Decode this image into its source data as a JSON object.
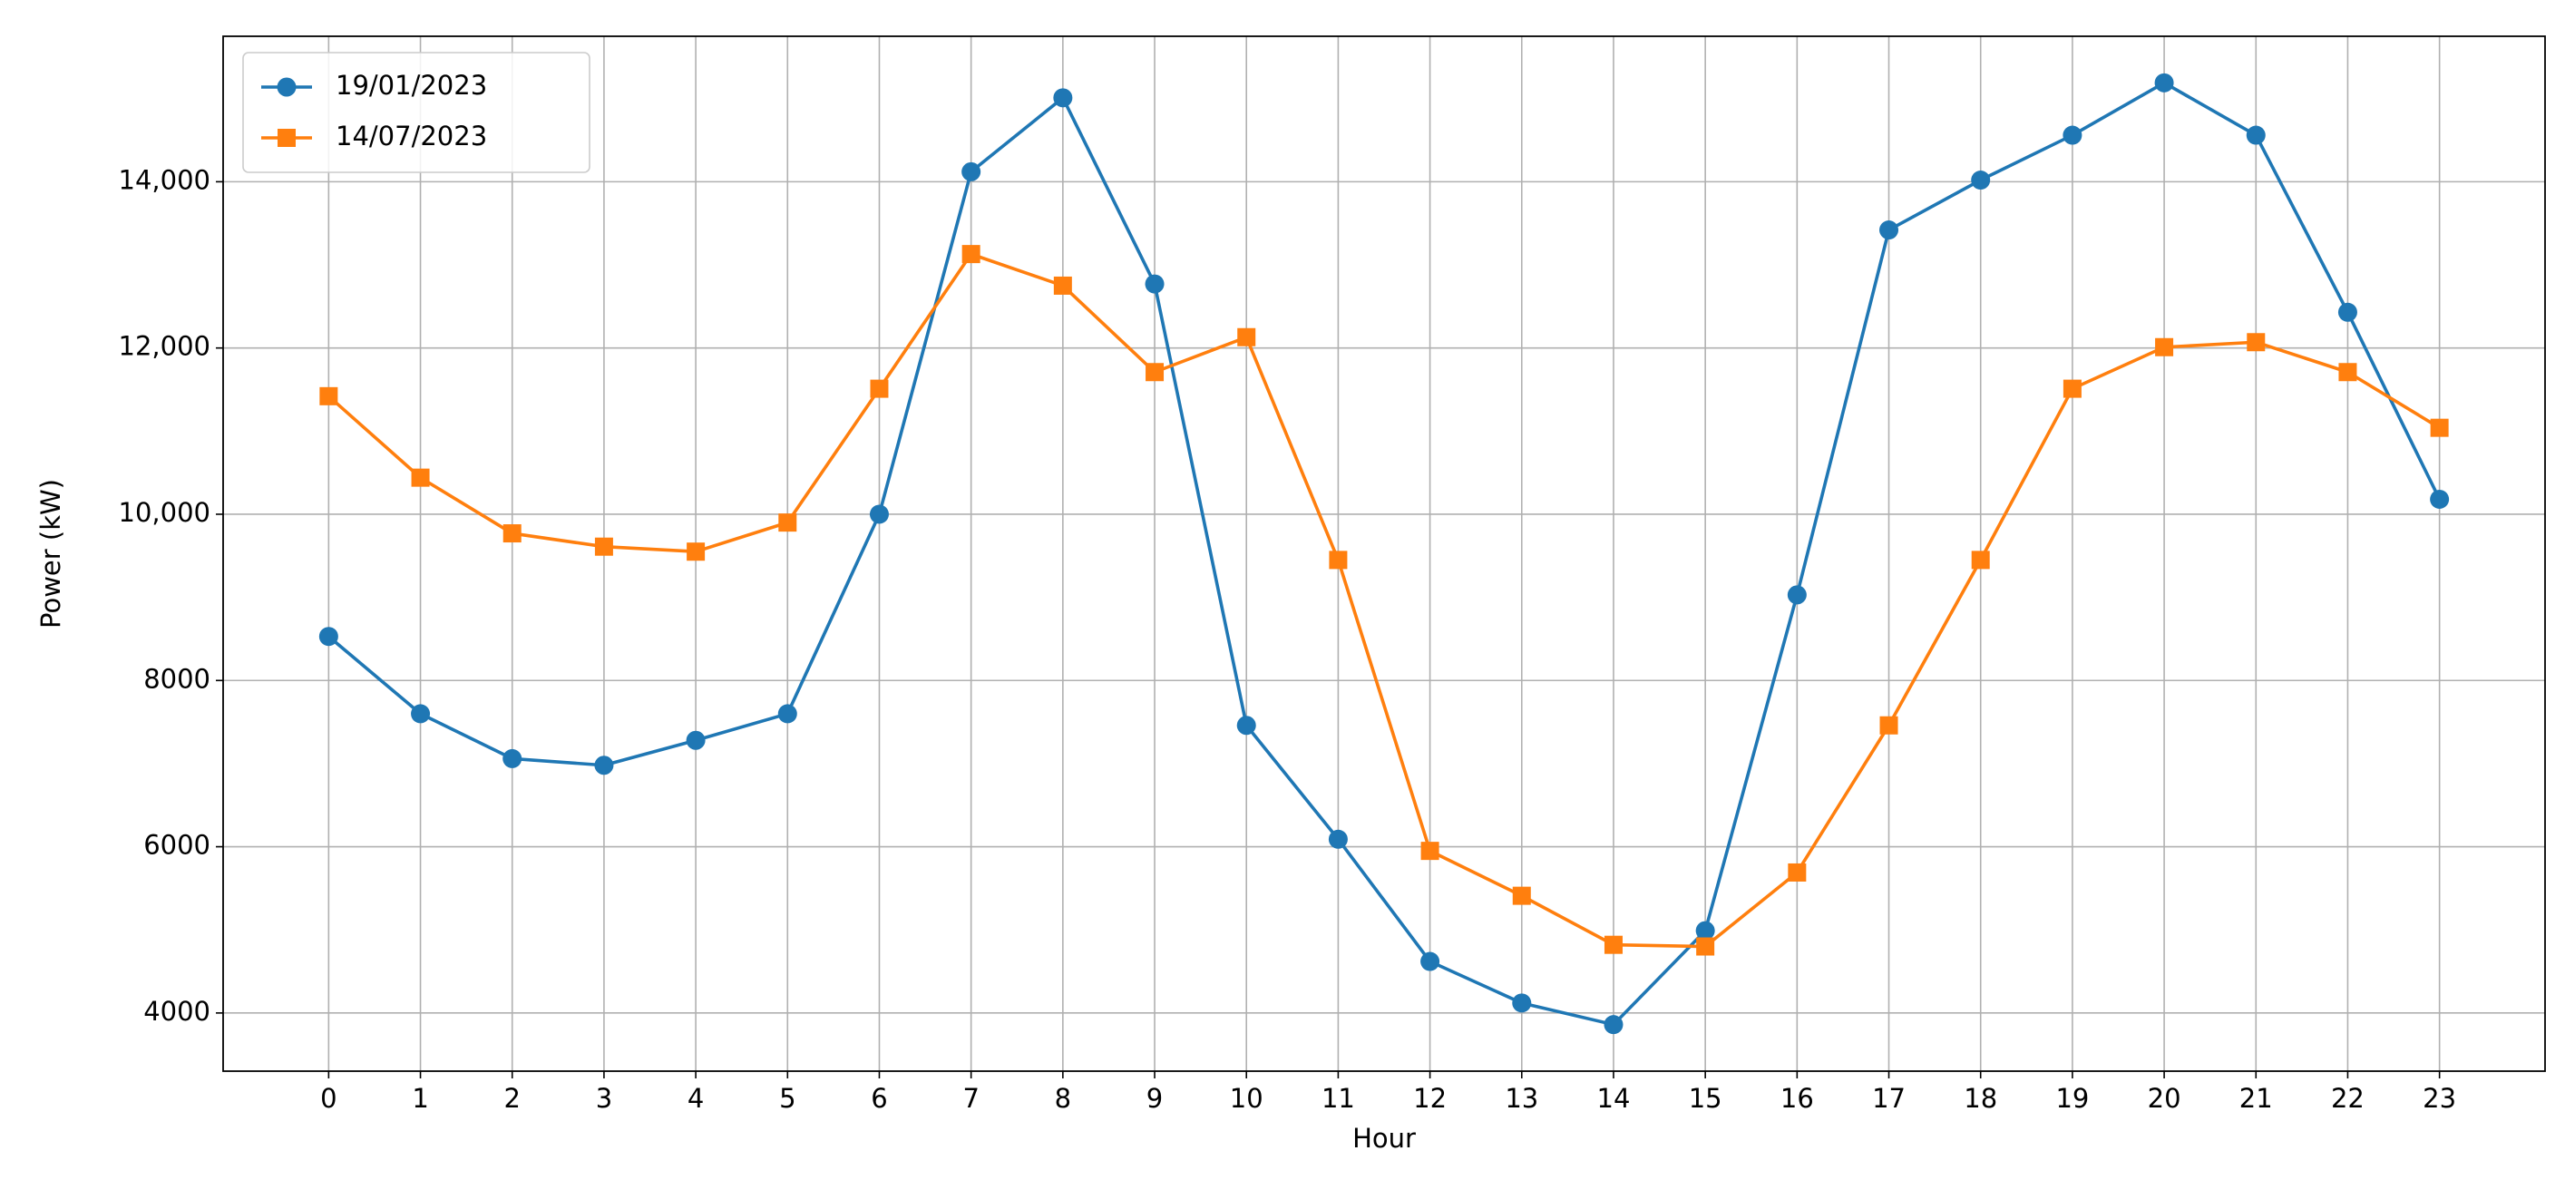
{
  "chart_data": {
    "type": "line",
    "x_label": "Hour",
    "y_label": "Power (kW)",
    "x": [
      0,
      1,
      2,
      3,
      4,
      5,
      6,
      7,
      8,
      9,
      10,
      11,
      12,
      13,
      14,
      15,
      16,
      17,
      18,
      19,
      20,
      21,
      22,
      23
    ],
    "series": [
      {
        "name": "19/01/2023",
        "color": "#1f77b4",
        "marker": "circle",
        "values": [
          8530,
          7600,
          7060,
          6980,
          7280,
          7600,
          10000,
          14120,
          15010,
          12770,
          7460,
          6090,
          4620,
          4120,
          3860,
          4990,
          9030,
          13420,
          14020,
          14560,
          15190,
          14560,
          12430,
          10180
        ]
      },
      {
        "name": "14/07/2023",
        "color": "#ff7f0e",
        "marker": "square",
        "values": [
          11420,
          10440,
          9770,
          9610,
          9550,
          9900,
          11510,
          13130,
          12750,
          11710,
          12130,
          9450,
          5950,
          5410,
          4820,
          4800,
          5690,
          7460,
          9450,
          11510,
          12010,
          12070,
          11710,
          11040
        ]
      }
    ],
    "xlim": [
      -1.15,
      24.15
    ],
    "ylim": [
      3300,
      15750
    ],
    "xticks": [
      0,
      1,
      2,
      3,
      4,
      5,
      6,
      7,
      8,
      9,
      10,
      11,
      12,
      13,
      14,
      15,
      16,
      17,
      18,
      19,
      20,
      21,
      22,
      23
    ],
    "yticks": [
      4000,
      6000,
      8000,
      {
        "value": 10000,
        "label": "10,000"
      },
      {
        "value": 12000,
        "label": "12,000"
      },
      {
        "value": 14000,
        "label": "14,000"
      }
    ],
    "grid": true,
    "legend": "upper-left"
  }
}
